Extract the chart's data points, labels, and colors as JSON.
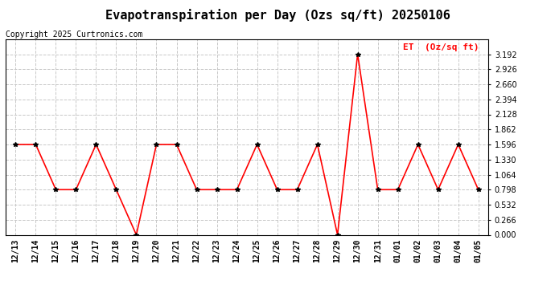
{
  "title": "Evapotranspiration per Day (Ozs sq/ft) 20250106",
  "copyright": "Copyright 2025 Curtronics.com",
  "legend_label": "ET  (Oz/sq ft)",
  "legend_color": "red",
  "dates": [
    "12/13",
    "12/14",
    "12/15",
    "12/16",
    "12/17",
    "12/18",
    "12/19",
    "12/20",
    "12/21",
    "12/22",
    "12/23",
    "12/24",
    "12/25",
    "12/26",
    "12/27",
    "12/28",
    "12/29",
    "12/30",
    "12/31",
    "01/01",
    "01/02",
    "01/03",
    "01/04",
    "01/05"
  ],
  "values": [
    1.596,
    1.596,
    0.798,
    0.798,
    1.596,
    0.798,
    0.0,
    1.596,
    1.596,
    0.798,
    0.798,
    0.798,
    1.596,
    0.798,
    0.798,
    1.596,
    0.0,
    3.192,
    0.798,
    0.798,
    1.596,
    0.798,
    1.596,
    0.798
  ],
  "ylim": [
    0.0,
    3.458
  ],
  "yticks": [
    0.0,
    0.266,
    0.532,
    0.798,
    1.064,
    1.33,
    1.596,
    1.862,
    2.128,
    2.394,
    2.66,
    2.926,
    3.192
  ],
  "line_color": "red",
  "marker_color": "black",
  "marker": "*",
  "marker_size": 4,
  "line_width": 1.2,
  "bg_color": "white",
  "grid_color": "#c8c8c8",
  "title_fontsize": 11,
  "copyright_fontsize": 7,
  "tick_fontsize": 7,
  "legend_fontsize": 8
}
